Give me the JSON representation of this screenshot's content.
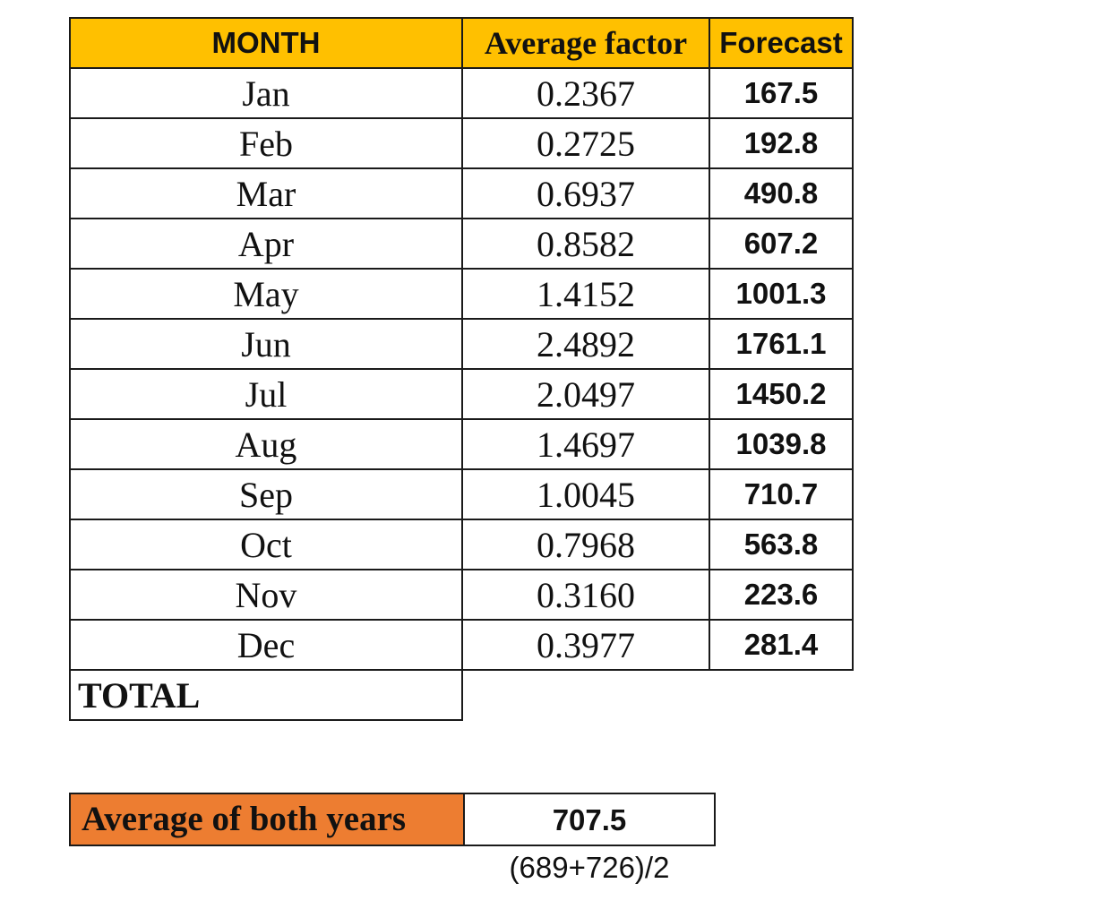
{
  "table": {
    "headers": {
      "month": "MONTH",
      "average_factor": "Average factor",
      "forecast": "Forecast"
    },
    "rows": [
      {
        "month": "Jan",
        "average_factor": "0.2367",
        "forecast": "167.5"
      },
      {
        "month": "Feb",
        "average_factor": "0.2725",
        "forecast": "192.8"
      },
      {
        "month": "Mar",
        "average_factor": "0.6937",
        "forecast": "490.8"
      },
      {
        "month": "Apr",
        "average_factor": "0.8582",
        "forecast": "607.2"
      },
      {
        "month": "May",
        "average_factor": "1.4152",
        "forecast": "1001.3"
      },
      {
        "month": "Jun",
        "average_factor": "2.4892",
        "forecast": "1761.1"
      },
      {
        "month": "Jul",
        "average_factor": "2.0497",
        "forecast": "1450.2"
      },
      {
        "month": "Aug",
        "average_factor": "1.4697",
        "forecast": "1039.8"
      },
      {
        "month": "Sep",
        "average_factor": "1.0045",
        "forecast": "710.7"
      },
      {
        "month": "Oct",
        "average_factor": "0.7968",
        "forecast": "563.8"
      },
      {
        "month": "Nov",
        "average_factor": "0.3160",
        "forecast": "223.6"
      },
      {
        "month": "Dec",
        "average_factor": "0.3977",
        "forecast": "281.4"
      }
    ],
    "total_label": "TOTAL"
  },
  "summary": {
    "label": "Average of both years",
    "value": "707.5",
    "formula": "(689+726)/2"
  },
  "colors": {
    "header_fill": "#ffc000",
    "summary_fill": "#ed7d31",
    "border": "#1a1a1a"
  }
}
